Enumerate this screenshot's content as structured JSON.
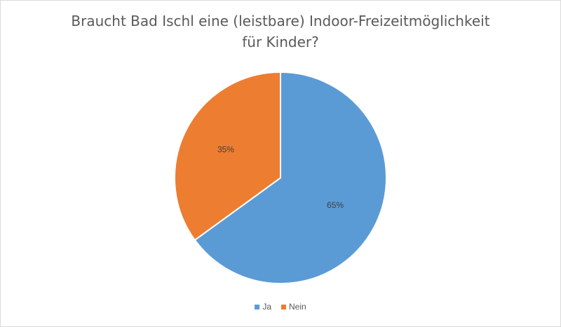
{
  "chart_data": {
    "type": "pie",
    "title_lines": [
      "Braucht Bad Ischl eine (leistbare) Indoor-Freizeitmöglichkeit",
      "für Kinder?"
    ],
    "slices": [
      {
        "label": "Ja",
        "value": 65,
        "display": "65%",
        "color": "#5b9bd5"
      },
      {
        "label": "Nein",
        "value": 35,
        "display": "35%",
        "color": "#ed7d31"
      }
    ],
    "legend_position": "bottom",
    "start_angle_degrees": 0,
    "direction": "clockwise"
  },
  "legend": {
    "items": [
      {
        "label": "Ja",
        "color": "#5b9bd5"
      },
      {
        "label": "Nein",
        "color": "#ed7d31"
      }
    ]
  }
}
